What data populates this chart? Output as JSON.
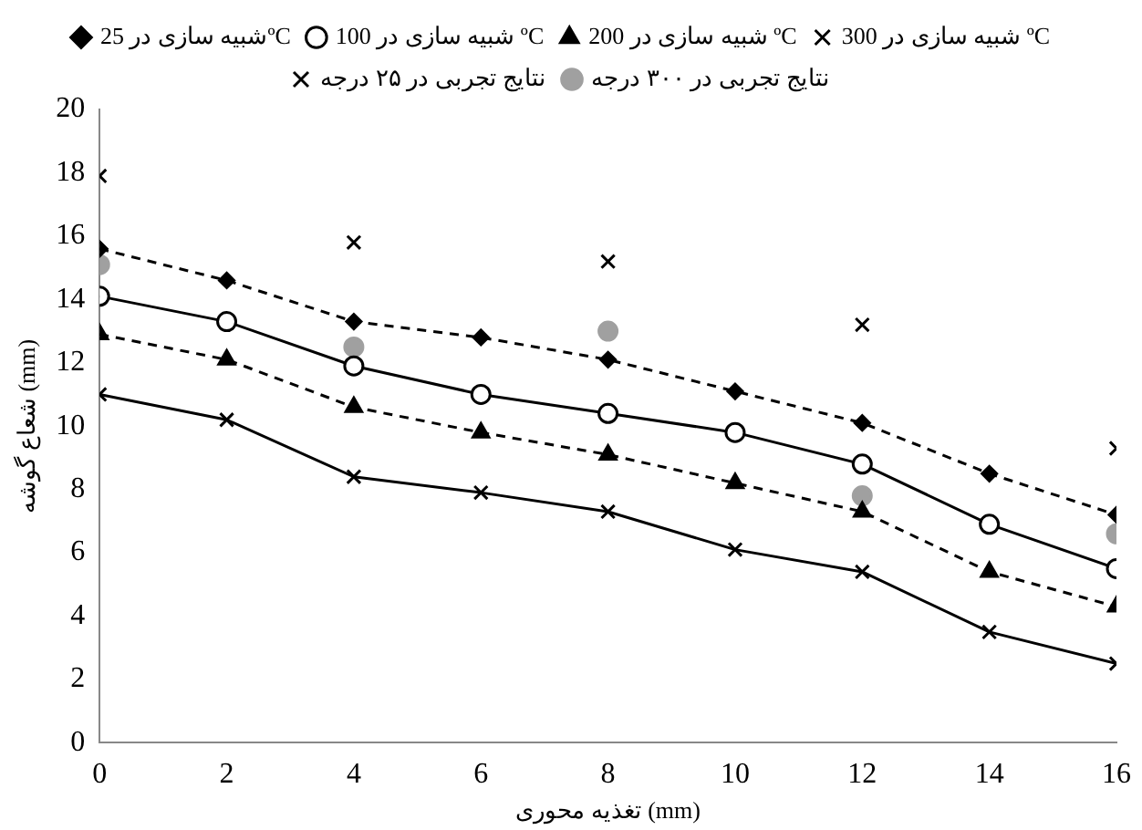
{
  "chart_data": {
    "type": "line",
    "xlabel": "تغذیه محوری (mm)",
    "ylabel": "شعاع گوشه (mm)",
    "x": [
      0,
      2,
      4,
      6,
      8,
      10,
      12,
      14,
      16
    ],
    "xlim": [
      0,
      16
    ],
    "xticks": [
      0,
      2,
      4,
      6,
      8,
      10,
      12,
      14,
      16
    ],
    "ylim": [
      0,
      20
    ],
    "yticks": [
      0,
      2,
      4,
      6,
      8,
      10,
      12,
      14,
      16,
      18,
      20
    ],
    "grid": false,
    "legend": "top",
    "series": [
      {
        "name": "شبیه سازی در 25ºC",
        "color": "#000000",
        "marker": "diamond",
        "line_style": "dashed",
        "values": [
          15.6,
          14.6,
          13.3,
          12.8,
          12.1,
          11.1,
          10.1,
          8.5,
          7.2
        ]
      },
      {
        "name": "شبیه سازی در 100 ºC",
        "color": "#000000",
        "marker": "circle",
        "line_style": "solid",
        "values": [
          14.1,
          13.3,
          11.9,
          11.0,
          10.4,
          9.8,
          8.8,
          6.9,
          5.5
        ]
      },
      {
        "name": "شبیه سازی در 200 ºC",
        "color": "#000000",
        "marker": "triangle",
        "line_style": "dashed",
        "values": [
          12.9,
          12.1,
          10.6,
          9.8,
          9.1,
          8.2,
          7.3,
          5.4,
          4.3
        ]
      },
      {
        "name": "شبیه سازی در 300 ºC",
        "color": "#000000",
        "marker": "cross",
        "line_style": "solid",
        "values": [
          11.0,
          10.2,
          8.4,
          7.9,
          7.3,
          6.1,
          5.4,
          3.5,
          2.5
        ]
      },
      {
        "name": "نتایج تجربی در ۲۵ درجه",
        "type": "scatter",
        "color": "#000000",
        "marker": "cross",
        "x": [
          0,
          4,
          8,
          12,
          16
        ],
        "values": [
          17.9,
          15.8,
          15.2,
          13.2,
          9.3
        ]
      },
      {
        "name": "نتایج تجربی در ۳۰۰ درجه",
        "type": "scatter",
        "color": "#a0a0a0",
        "marker": "circle",
        "x": [
          0,
          4,
          8,
          12,
          16
        ],
        "values": [
          15.1,
          12.5,
          13.0,
          7.8,
          6.6
        ]
      }
    ]
  }
}
